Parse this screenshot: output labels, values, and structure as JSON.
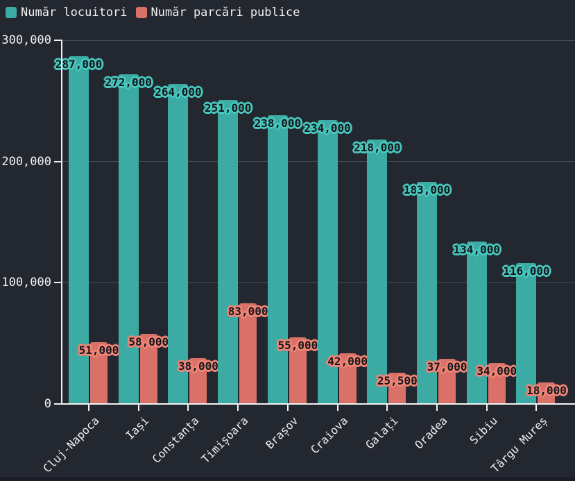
{
  "legend": {
    "items": [
      {
        "label": "Număr locuitori",
        "color": "#3caba4"
      },
      {
        "label": "Număr parcări publice",
        "color": "#da7168"
      }
    ],
    "position": "top-left"
  },
  "chart_data": {
    "type": "bar",
    "title": "",
    "xlabel": "",
    "ylabel": "",
    "categories": [
      "Cluj-Napoca",
      "Iași",
      "Constanța",
      "Timișoara",
      "Brașov",
      "Craiova",
      "Galați",
      "Oradea",
      "Sibiu",
      "Târgu Mureș"
    ],
    "series": [
      {
        "name": "Număr locuitori",
        "color": "#3caba4",
        "outline_color": "#49c7bd",
        "values": [
          287000,
          272000,
          264000,
          251000,
          238000,
          234000,
          218000,
          183000,
          134000,
          116000
        ],
        "labels": [
          "287,000",
          "272,000",
          "264,000",
          "251,000",
          "238,000",
          "234,000",
          "218,000",
          "183,000",
          "134,000",
          "116,000"
        ]
      },
      {
        "name": "Număr parcări publice",
        "color": "#da7168",
        "outline_color": "#ef8576",
        "values": [
          51000,
          58000,
          38000,
          83000,
          55000,
          42000,
          25500,
          37000,
          34000,
          18000
        ],
        "labels": [
          "51,000",
          "58,000",
          "38,000",
          "83,000",
          "55,000",
          "42,000",
          "25,500",
          "37,000",
          "34,000",
          "18,000"
        ]
      }
    ],
    "ylim": [
      0,
      300000
    ],
    "yticks": [
      {
        "value": 0,
        "label": "0"
      },
      {
        "value": 100000,
        "label": "100,000"
      },
      {
        "value": 200000,
        "label": "200,000"
      },
      {
        "value": 300000,
        "label": "300,000"
      }
    ],
    "grid": "horizontal",
    "legend_position": "top-left"
  },
  "colors": {
    "background": "#232730",
    "gridline": "#4a4e57",
    "axis": "#f2f2f2",
    "tick_text": "#f2f2f2",
    "value_text": "#15171c",
    "footer_strip": "#1b1e26"
  }
}
